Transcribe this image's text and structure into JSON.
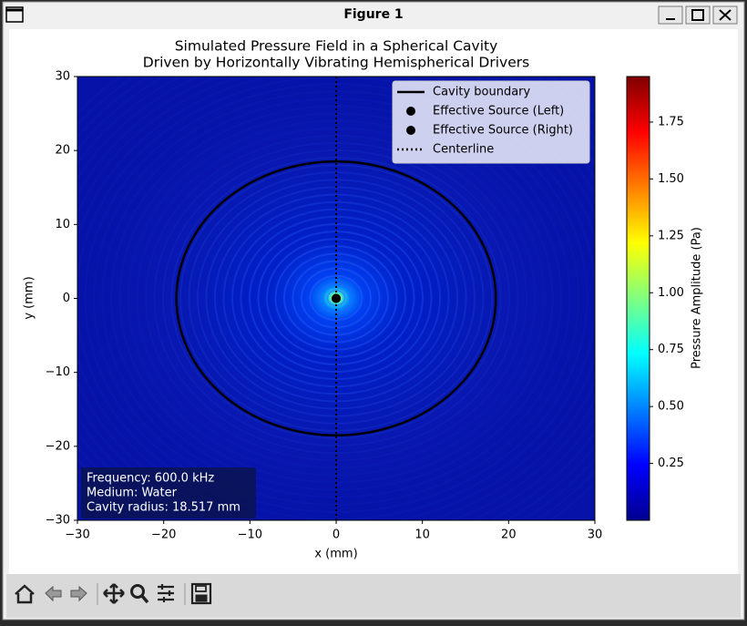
{
  "window": {
    "title": "Figure 1"
  },
  "chart_data": {
    "type": "heatmap",
    "title": "Simulated Pressure Field in a Spherical Cavity",
    "subtitle": "Driven by Horizontally Vibrating Hemispherical Drivers",
    "x_label": "x (mm)",
    "y_label": "y (mm)",
    "xlim": [
      -30,
      30
    ],
    "ylim": [
      -30,
      30
    ],
    "xticks": [
      {
        "value": -30,
        "label": "−30"
      },
      {
        "value": -20,
        "label": "−20"
      },
      {
        "value": -10,
        "label": "−10"
      },
      0,
      10,
      20,
      30
    ],
    "yticks": [
      {
        "value": -30,
        "label": "−30"
      },
      {
        "value": -20,
        "label": "−20"
      },
      {
        "value": -10,
        "label": "−10"
      },
      0,
      10,
      20,
      30
    ],
    "colormap": "jet",
    "colorbar": {
      "label": "Pressure Amplitude (Pa)",
      "clim": [
        0,
        1.95
      ],
      "ticks": [
        0.25,
        {
          "value": 0.5,
          "label": "0.50"
        },
        0.75,
        {
          "value": 1,
          "label": "1.00"
        },
        1.25,
        {
          "value": 1.5,
          "label": "1.50"
        },
        1.75
      ]
    },
    "overlays": [
      {
        "name": "Cavity boundary",
        "kind": "circle",
        "color": "#000000",
        "center": [
          0,
          0
        ],
        "radius": 18.517
      },
      {
        "name": "Effective Source (Left)",
        "kind": "point",
        "color": "#000000",
        "x": 0,
        "y": 0
      },
      {
        "name": "Effective Source (Right)",
        "kind": "point",
        "color": "#000000",
        "x": 0,
        "y": 0
      },
      {
        "name": "Centerline",
        "kind": "vline",
        "color": "#000000",
        "x": 0
      }
    ],
    "legend": "upper right",
    "annotation": [
      "Frequency: 600.0 kHz",
      "Medium: Water",
      "Cavity radius: 18.517 mm"
    ]
  }
}
